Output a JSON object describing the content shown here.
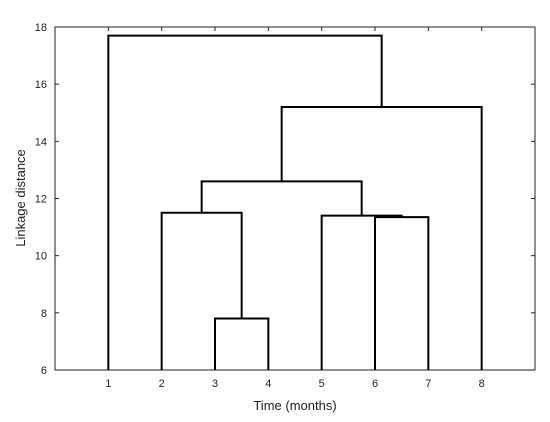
{
  "chart_data": {
    "type": "dendrogram",
    "title": "",
    "xlabel": "Time (months)",
    "ylabel": "Linkage distance",
    "ylim": [
      6,
      18
    ],
    "yticks": [
      "6",
      "8",
      "10",
      "12",
      "14",
      "16",
      "18"
    ],
    "xlim": [
      0,
      9
    ],
    "leaves": [
      "1",
      "2",
      "3",
      "4",
      "5",
      "6",
      "7",
      "8"
    ],
    "merges": [
      {
        "left": [
          3
        ],
        "right": [
          4
        ],
        "height": 7.8
      },
      {
        "left": [
          6
        ],
        "right": [
          7
        ],
        "height": 11.35
      },
      {
        "left": [
          5
        ],
        "right": [
          6,
          7
        ],
        "height": 11.4
      },
      {
        "left": [
          2
        ],
        "right": [
          3,
          4
        ],
        "height": 11.5
      },
      {
        "left": [
          2,
          3,
          4
        ],
        "right": [
          5,
          6,
          7
        ],
        "height": 12.6
      },
      {
        "left": [
          2,
          3,
          4,
          5,
          6,
          7
        ],
        "right": [
          8
        ],
        "height": 15.2
      },
      {
        "left": [
          1
        ],
        "right": [
          2,
          3,
          4,
          5,
          6,
          7,
          8
        ],
        "height": 17.7
      }
    ],
    "grid": false,
    "line_color": "#000000"
  }
}
